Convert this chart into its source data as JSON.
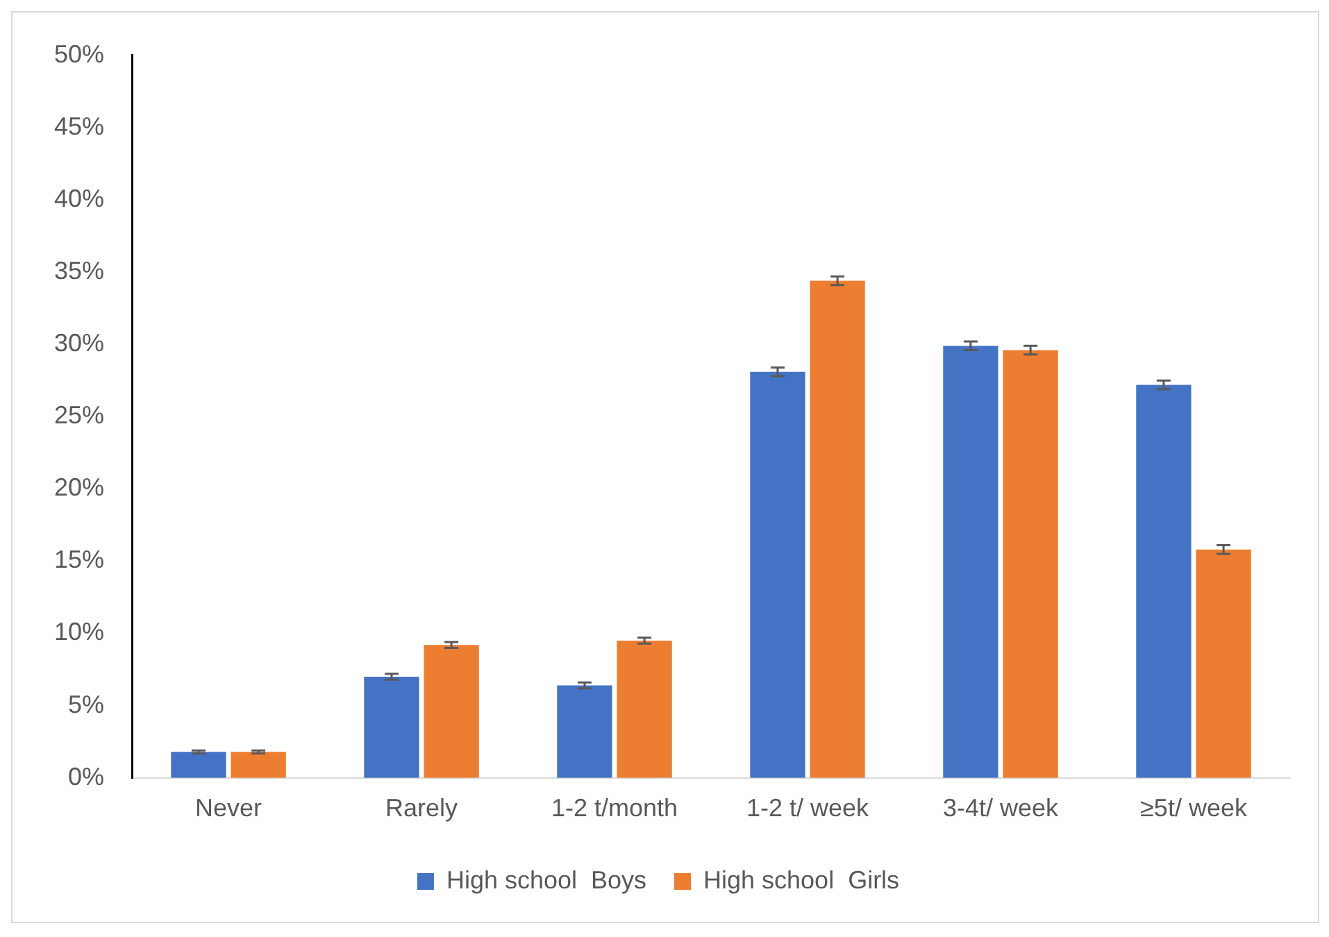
{
  "chart_data": {
    "type": "bar",
    "categories": [
      "Never",
      "Rarely",
      "1-2 t/month",
      "1-2 t/ week",
      "3-4t/ week",
      "≥5t/ week"
    ],
    "series": [
      {
        "name": "High school  Boys",
        "color": "#4472c4",
        "values": [
          1.8,
          7.0,
          6.4,
          28.1,
          29.9,
          27.2
        ],
        "errors": [
          0.1,
          0.2,
          0.2,
          0.3,
          0.3,
          0.3
        ]
      },
      {
        "name": "High school  Girls",
        "color": "#ed7d31",
        "values": [
          1.8,
          9.2,
          9.5,
          34.4,
          29.6,
          15.8
        ],
        "errors": [
          0.1,
          0.2,
          0.2,
          0.3,
          0.3,
          0.3
        ]
      }
    ],
    "ylim": [
      0,
      50
    ],
    "yticks": [
      {
        "value": 0,
        "label": "0%"
      },
      {
        "value": 5,
        "label": "5%"
      },
      {
        "value": 10,
        "label": "10%"
      },
      {
        "value": 15,
        "label": "15%"
      },
      {
        "value": 20,
        "label": "20%"
      },
      {
        "value": 25,
        "label": "25%"
      },
      {
        "value": 30,
        "label": "30%"
      },
      {
        "value": 35,
        "label": "35%"
      },
      {
        "value": 40,
        "label": "40%"
      },
      {
        "value": 45,
        "label": "45%"
      },
      {
        "value": 50,
        "label": "50%"
      }
    ],
    "grid": false,
    "legend": "bottom"
  }
}
